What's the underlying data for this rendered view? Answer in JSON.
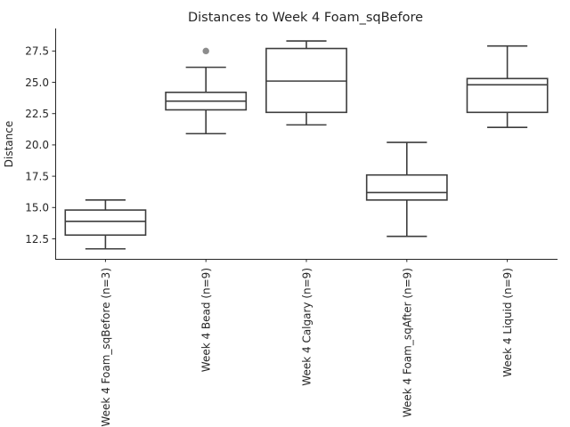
{
  "chart_data": {
    "type": "box",
    "title": "Distances to Week 4 Foam_sqBefore",
    "xlabel": "",
    "ylabel": "Distance",
    "ylim": [
      10.9,
      29.3
    ],
    "yticks": [
      12.5,
      15.0,
      17.5,
      20.0,
      22.5,
      25.0,
      27.5
    ],
    "ytick_labels": [
      "12.5",
      "15.0",
      "17.5",
      "20.0",
      "22.5",
      "25.0",
      "27.5"
    ],
    "grid": false,
    "categories": [
      "Week 4 Foam_sqBefore (n=3)",
      "Week 4 Bead (n=9)",
      "Week 4 Calgary (n=9)",
      "Week 4 Foam_sqAfter (n=9)",
      "Week 4 Liquid (n=9)"
    ],
    "boxes": [
      {
        "whisker_low": 11.7,
        "q1": 12.8,
        "median": 13.9,
        "q3": 14.8,
        "whisker_high": 15.6,
        "outliers": []
      },
      {
        "whisker_low": 20.9,
        "q1": 22.8,
        "median": 23.5,
        "q3": 24.2,
        "whisker_high": 26.2,
        "outliers": [
          27.5
        ]
      },
      {
        "whisker_low": 21.6,
        "q1": 22.6,
        "median": 25.1,
        "q3": 27.7,
        "whisker_high": 28.3,
        "outliers": []
      },
      {
        "whisker_low": 12.7,
        "q1": 15.6,
        "median": 16.2,
        "q3": 17.6,
        "whisker_high": 20.2,
        "outliers": []
      },
      {
        "whisker_low": 21.4,
        "q1": 22.6,
        "median": 24.8,
        "q3": 25.3,
        "whisker_high": 27.9,
        "outliers": []
      }
    ]
  }
}
